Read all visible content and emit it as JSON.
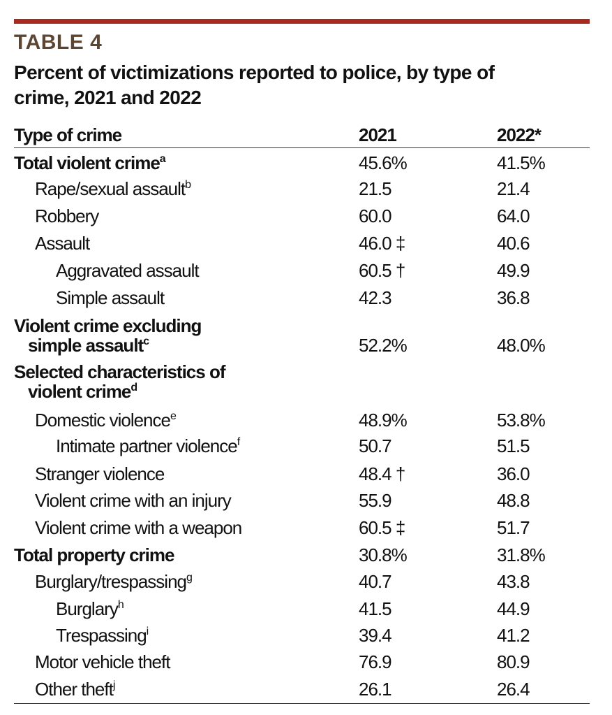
{
  "label": "TABLE 4",
  "title": [
    "Percent of victimizations reported to police, by type of",
    "crime, 2021 and 2022"
  ],
  "columns": [
    "Type of crime",
    "2021",
    "2022*"
  ],
  "rows": [
    {
      "label": "Total violent crime",
      "note": "a",
      "values": [
        "45.6%",
        "41.5%"
      ]
    },
    {
      "label": "Rape/sexual assault",
      "note": "b",
      "values": [
        "21.5",
        "21.4"
      ]
    },
    {
      "label": "Robbery",
      "values": [
        "60.0",
        "64.0"
      ]
    },
    {
      "label": "Assault",
      "values": [
        "46.0",
        "40.6"
      ],
      "marker": "‡"
    },
    {
      "label": "Aggravated assault",
      "values": [
        "60.5",
        "49.9"
      ],
      "marker": "†"
    },
    {
      "label": "Simple assault",
      "values": [
        "42.3",
        "36.8"
      ]
    },
    {
      "label": [
        "Violent crime excluding",
        "simple assault"
      ],
      "note": "c",
      "values": [
        "52.2%",
        "48.0%"
      ]
    },
    {
      "label": [
        "Selected characteristics of",
        "violent crime"
      ],
      "note": "d"
    },
    {
      "label": "Domestic violence",
      "note": "e",
      "values": [
        "48.9%",
        "53.8%"
      ]
    },
    {
      "label": "Intimate partner violence",
      "note": "f",
      "values": [
        "50.7",
        "51.5"
      ]
    },
    {
      "label": "Stranger violence",
      "values": [
        "48.4",
        "36.0"
      ],
      "marker": "†"
    },
    {
      "label": "Violent crime with an injury",
      "values": [
        "55.9",
        "48.8"
      ]
    },
    {
      "label": "Violent crime with a weapon",
      "values": [
        "60.5",
        "51.7"
      ],
      "marker": "‡"
    },
    {
      "label": "Total property crime",
      "values": [
        "30.8%",
        "31.8%"
      ]
    },
    {
      "label": "Burglary/trespassing",
      "note": "g",
      "values": [
        "40.7",
        "43.8"
      ]
    },
    {
      "label": "Burglary",
      "note": "h",
      "values": [
        "41.5",
        "44.9"
      ]
    },
    {
      "label": "Trespassing",
      "note": "i",
      "values": [
        "39.4",
        "41.2"
      ]
    },
    {
      "label": "Motor vehicle theft",
      "values": [
        "76.9",
        "80.9"
      ]
    },
    {
      "label": "Other theft",
      "note": "j",
      "values": [
        "26.1",
        "26.4"
      ]
    }
  ]
}
